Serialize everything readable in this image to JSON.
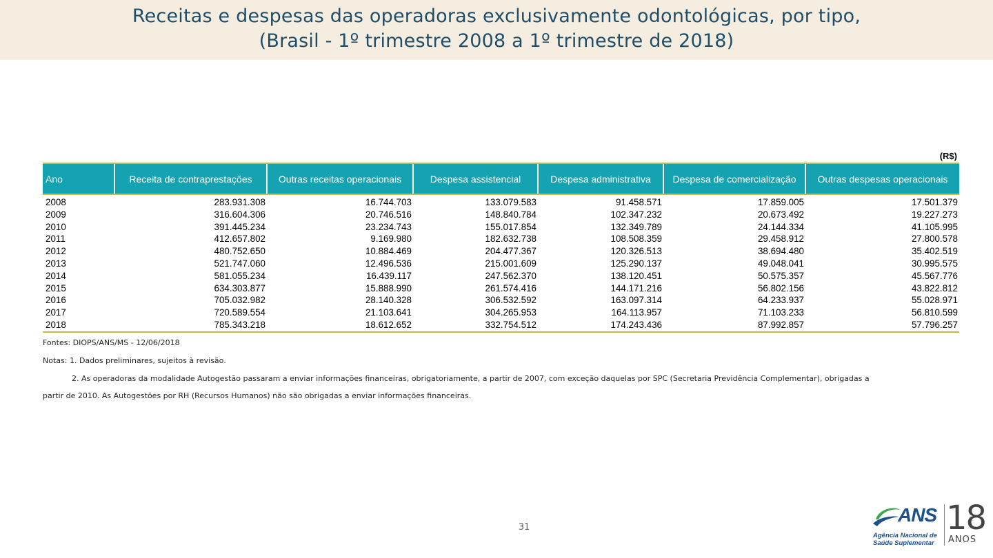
{
  "title": {
    "line1": "Receitas e despesas das operadoras exclusivamente odontológicas, por tipo,",
    "line2": "(Brasil - 1º trimestre 2008 a 1º trimestre de 2018)"
  },
  "currency_label": "(R$)",
  "table": {
    "headers": [
      "Ano",
      "Receita de contraprestações",
      "Outras receitas operacionais",
      "Despesa assistencial",
      "Despesa administrativa",
      "Despesa de comercialização",
      "Outras despesas operacionais"
    ],
    "rows": [
      [
        "2008",
        "283.931.308",
        "16.744.703",
        "133.079.583",
        "91.458.571",
        "17.859.005",
        "17.501.379"
      ],
      [
        "2009",
        "316.604.306",
        "20.746.516",
        "148.840.784",
        "102.347.232",
        "20.673.492",
        "19.227.273"
      ],
      [
        "2010",
        "391.445.234",
        "23.234.743",
        "155.017.854",
        "132.349.789",
        "24.144.334",
        "41.105.995"
      ],
      [
        "2011",
        "412.657.802",
        "9.169.980",
        "182.632.738",
        "108.508.359",
        "29.458.912",
        "27.800.578"
      ],
      [
        "2012",
        "480.752.650",
        "10.884.469",
        "204.477.367",
        "120.326.513",
        "38.694.480",
        "35.402.519"
      ],
      [
        "2013",
        "521.747.060",
        "12.496.536",
        "215.001.609",
        "125.290.137",
        "49.048.041",
        "30.995.575"
      ],
      [
        "2014",
        "581.055.234",
        "16.439.117",
        "247.562.370",
        "138.120.451",
        "50.575.357",
        "45.567.776"
      ],
      [
        "2015",
        "634.303.877",
        "15.888.990",
        "261.574.416",
        "144.171.216",
        "56.802.156",
        "43.822.812"
      ],
      [
        "2016",
        "705.032.982",
        "28.140.328",
        "306.532.592",
        "163.097.314",
        "64.233.937",
        "55.028.971"
      ],
      [
        "2017",
        "720.589.554",
        "21.103.641",
        "304.265.953",
        "164.113.957",
        "71.103.233",
        "56.810.599"
      ],
      [
        "2018",
        "785.343.218",
        "18.612.652",
        "332.754.512",
        "174.243.436",
        "87.992.857",
        "57.796.257"
      ]
    ]
  },
  "notes": {
    "source": "Fontes: DIOPS/ANS/MS - 12/06/2018",
    "note1": "Notas:  1. Dados preliminares, sujeitos à revisão.",
    "note2": "2. As operadoras da modalidade Autogestão passaram a enviar informações financeiras, obrigatoriamente, a partir de 2007, com exceção daquelas por SPC (Secretaria Previdência Complementar), obrigadas a",
    "note2_cont": "partir de 2010. As Autogestões por RH (Recursos Humanos) não são obrigadas a enviar informações financeiras."
  },
  "page_number": "31",
  "logo": {
    "name": "ANS",
    "subtitle_line1": "Agência Nacional de",
    "subtitle_line2": "Saúde Suplementar",
    "anniversary": "18",
    "anniversary_label": "ANOS"
  },
  "colors": {
    "title_band": "#f4ede0",
    "title_text": "#1f4e6b",
    "header_bg": "#16a3b1",
    "rule": "#c8b94a",
    "logo_blue": "#1d4f8c",
    "logo_green": "#3aa84a"
  }
}
